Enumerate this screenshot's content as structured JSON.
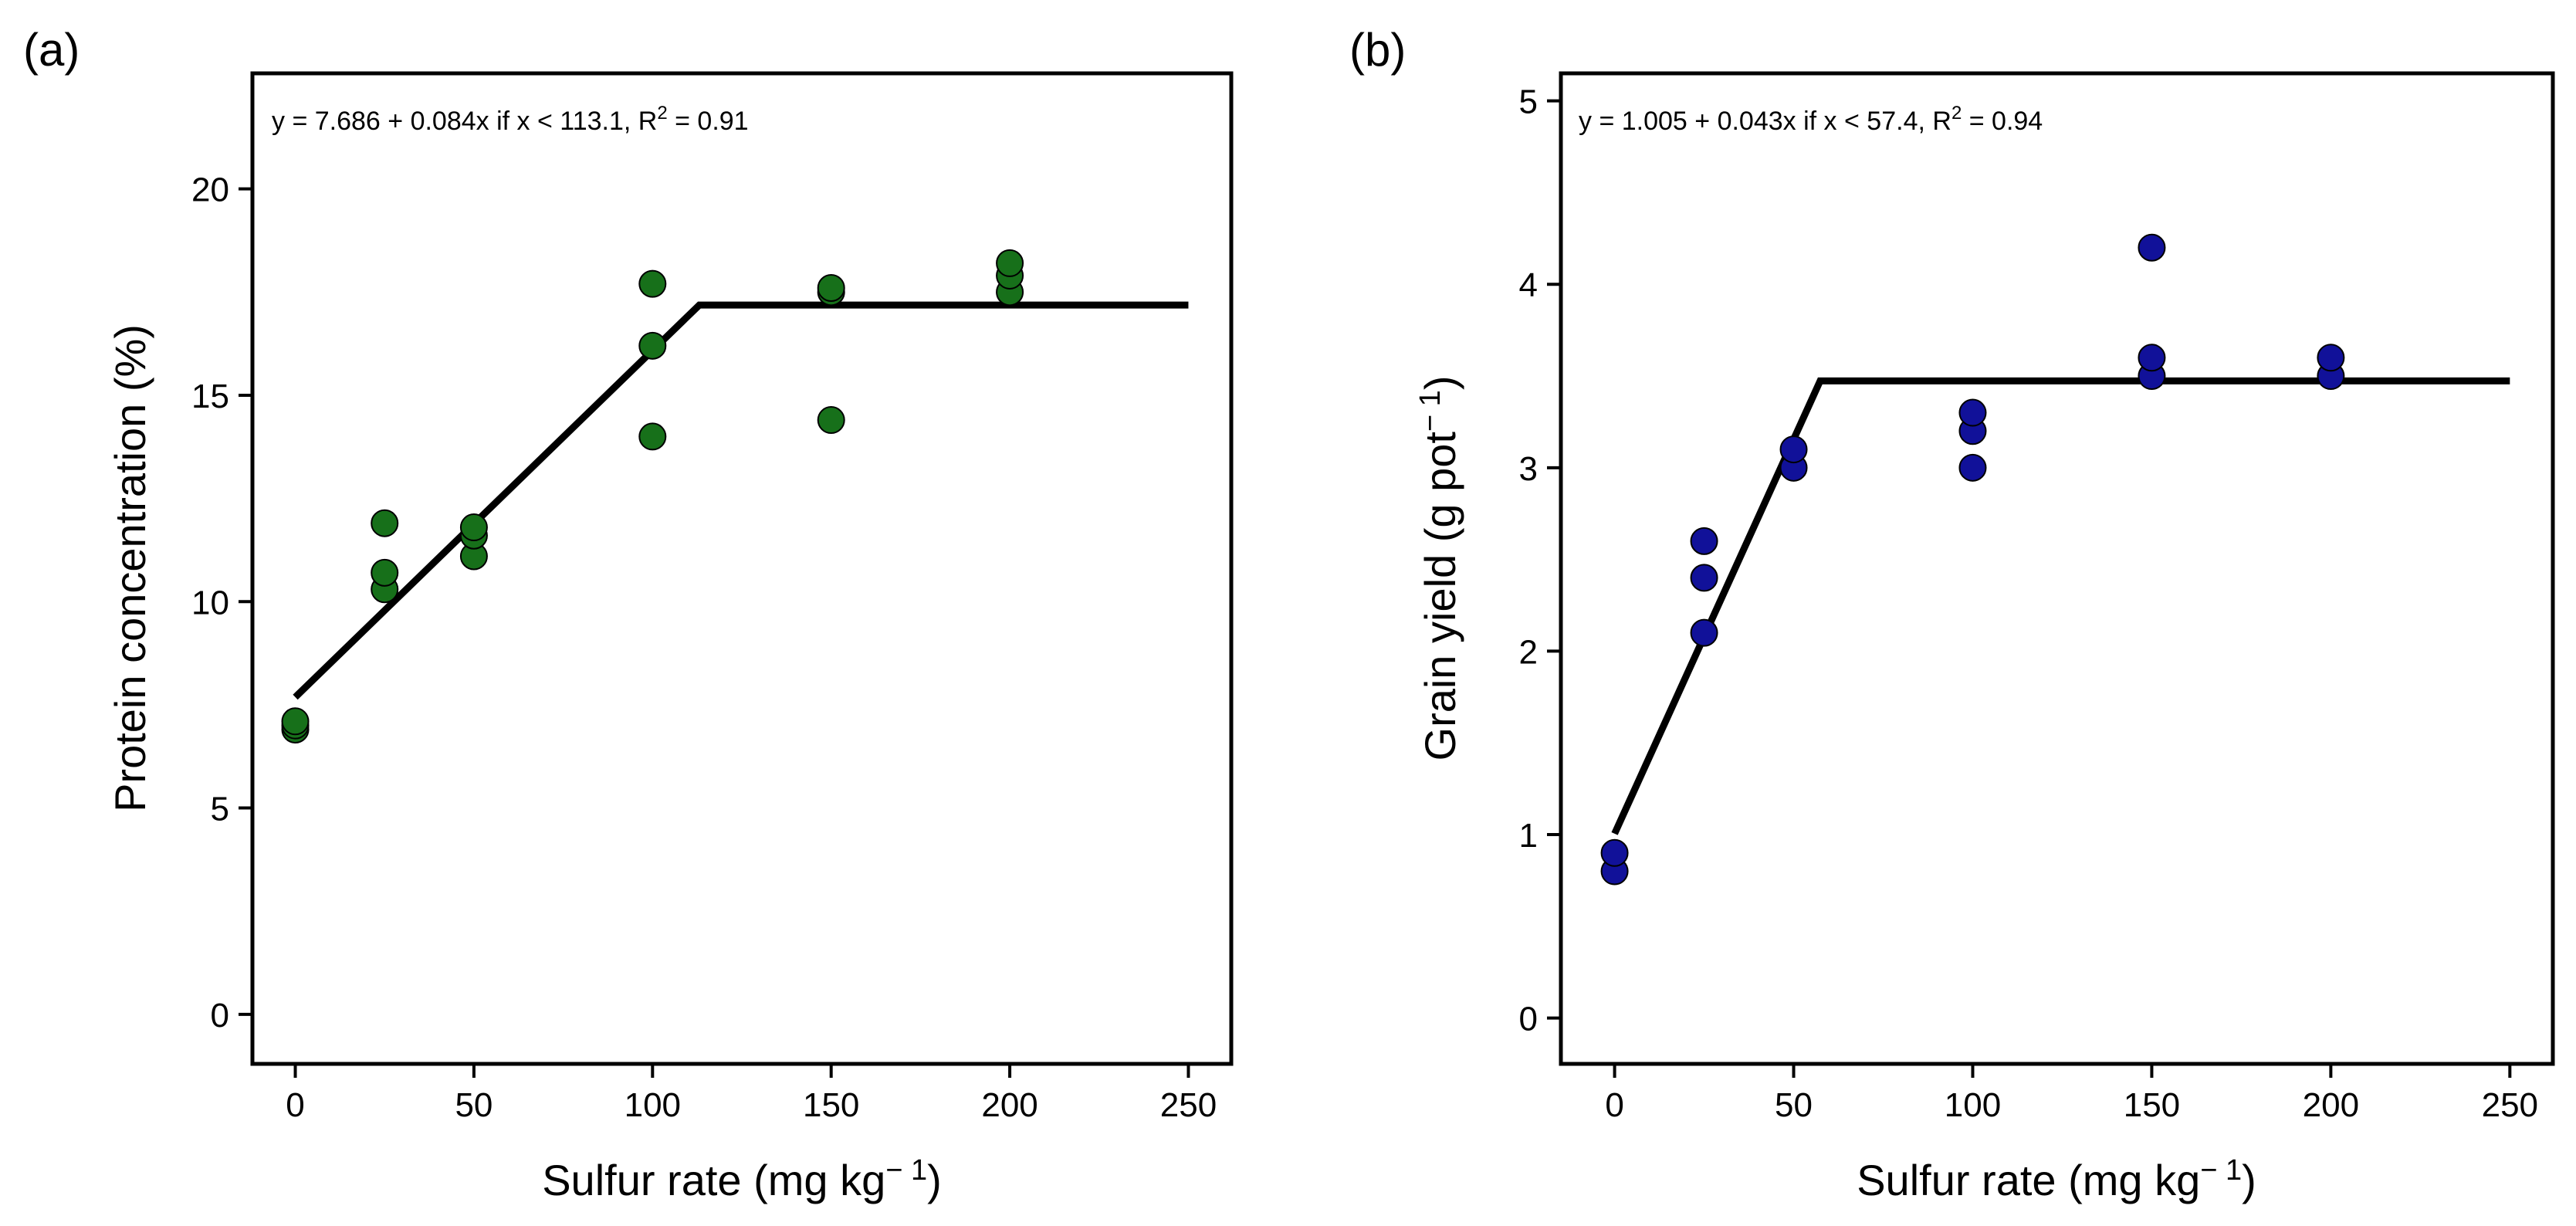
{
  "chart_data": [
    {
      "type": "scatter",
      "panel_label": "(a)",
      "equation": {
        "prefix": "y = 7.686 + 0.084x  if x < 113.1, R",
        "sup": "2",
        "suffix": " = 0.91"
      },
      "xlabel": {
        "main": "Sulfur rate (mg kg",
        "sup": "− 1",
        "tail": ")"
      },
      "ylabel": {
        "main": "Protein concentration (%)",
        "sup": "",
        "tail": ""
      },
      "xlim": [
        -12,
        262
      ],
      "ylim": [
        -1.2,
        22.8
      ],
      "xticks": [
        0,
        50,
        100,
        150,
        200,
        250
      ],
      "yticks": [
        0,
        5,
        10,
        15,
        20
      ],
      "grid": false,
      "point_color": "#17701a",
      "points": [
        {
          "x": 0,
          "y": 6.9
        },
        {
          "x": 0,
          "y": 7.0
        },
        {
          "x": 0,
          "y": 7.1
        },
        {
          "x": 25,
          "y": 10.3
        },
        {
          "x": 25,
          "y": 10.7
        },
        {
          "x": 25,
          "y": 11.9
        },
        {
          "x": 50,
          "y": 11.1
        },
        {
          "x": 50,
          "y": 11.6
        },
        {
          "x": 50,
          "y": 11.8
        },
        {
          "x": 100,
          "y": 14.0
        },
        {
          "x": 100,
          "y": 16.2
        },
        {
          "x": 100,
          "y": 17.7
        },
        {
          "x": 150,
          "y": 14.4
        },
        {
          "x": 150,
          "y": 17.5
        },
        {
          "x": 150,
          "y": 17.6
        },
        {
          "x": 200,
          "y": 17.5
        },
        {
          "x": 200,
          "y": 17.9
        },
        {
          "x": 200,
          "y": 18.2
        }
      ],
      "fit": {
        "type": "linear-plateau",
        "intercept": 7.686,
        "slope": 0.084,
        "breakpoint": 113.1,
        "x_range": [
          0,
          250
        ]
      }
    },
    {
      "type": "scatter",
      "panel_label": "(b)",
      "equation": {
        "prefix": "y = 1.005 + 0.043x  if x < 57.4, R",
        "sup": "2",
        "suffix": " = 0.94"
      },
      "xlabel": {
        "main": "Sulfur rate (mg kg",
        "sup": "− 1",
        "tail": ")"
      },
      "ylabel": {
        "main": "Grain yield (g pot",
        "sup": "− 1",
        "tail": ")"
      },
      "xlim": [
        -15,
        262
      ],
      "ylim": [
        -0.25,
        5.15
      ],
      "xticks": [
        0,
        50,
        100,
        150,
        200,
        250
      ],
      "yticks": [
        0,
        1,
        2,
        3,
        4,
        5
      ],
      "grid": false,
      "point_color": "#111199",
      "points": [
        {
          "x": 0,
          "y": 0.8
        },
        {
          "x": 0,
          "y": 0.9
        },
        {
          "x": 25,
          "y": 2.1
        },
        {
          "x": 25,
          "y": 2.4
        },
        {
          "x": 25,
          "y": 2.6
        },
        {
          "x": 50,
          "y": 3.0
        },
        {
          "x": 50,
          "y": 3.1
        },
        {
          "x": 100,
          "y": 3.0
        },
        {
          "x": 100,
          "y": 3.2
        },
        {
          "x": 100,
          "y": 3.3
        },
        {
          "x": 150,
          "y": 3.5
        },
        {
          "x": 150,
          "y": 3.6
        },
        {
          "x": 150,
          "y": 4.2
        },
        {
          "x": 200,
          "y": 3.5
        },
        {
          "x": 200,
          "y": 3.6
        }
      ],
      "fit": {
        "type": "linear-plateau",
        "intercept": 1.005,
        "slope": 0.043,
        "breakpoint": 57.4,
        "x_range": [
          0,
          250
        ]
      }
    }
  ]
}
